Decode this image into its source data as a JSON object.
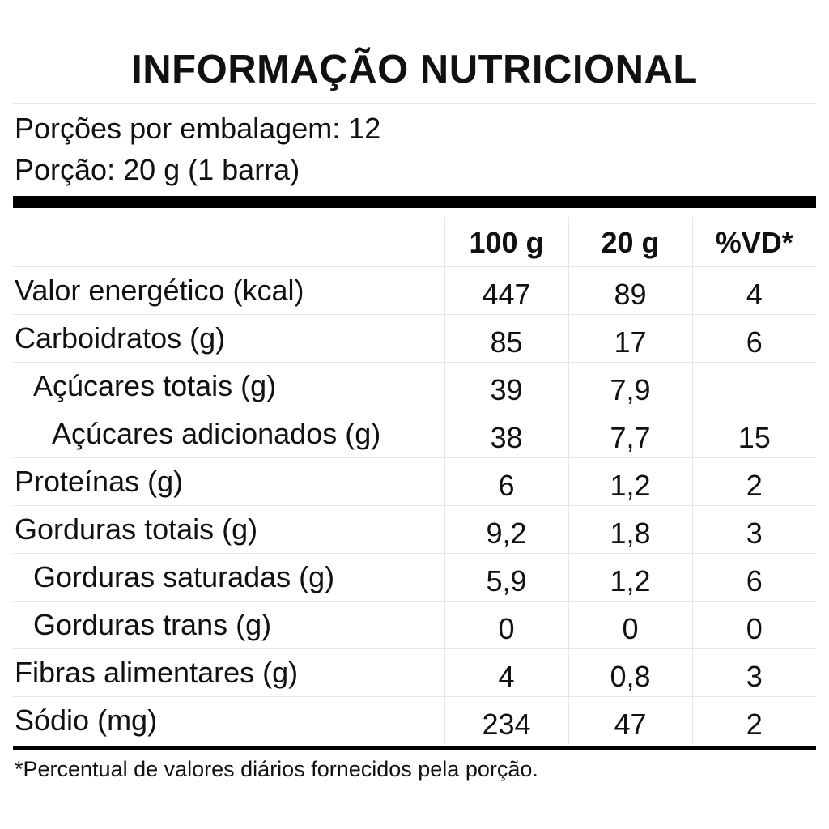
{
  "title": "INFORMAÇÃO NUTRICIONAL",
  "servings_per_package": "Porções por embalagem: 12",
  "serving_size": "Porção: 20 g (1 barra)",
  "table": {
    "headers": [
      "100 g",
      "20 g",
      "%VD*"
    ],
    "rows": [
      {
        "name": "Valor energético (kcal)",
        "level": 1,
        "per_100g": "447",
        "per_portion": "89",
        "dv": "4"
      },
      {
        "name": "Carboidratos (g)",
        "level": 1,
        "per_100g": "85",
        "per_portion": "17",
        "dv": "6"
      },
      {
        "name": "Açúcares totais (g)",
        "level": 2,
        "per_100g": "39",
        "per_portion": "7,9",
        "dv": ""
      },
      {
        "name": "Açúcares adicionados (g)",
        "level": 3,
        "per_100g": "38",
        "per_portion": "7,7",
        "dv": "15"
      },
      {
        "name": "Proteínas (g)",
        "level": 1,
        "per_100g": "6",
        "per_portion": "1,2",
        "dv": "2"
      },
      {
        "name": "Gorduras totais (g)",
        "level": 1,
        "per_100g": "9,2",
        "per_portion": "1,8",
        "dv": "3"
      },
      {
        "name": "Gorduras saturadas (g)",
        "level": 2,
        "per_100g": "5,9",
        "per_portion": "1,2",
        "dv": "6"
      },
      {
        "name": "Gorduras trans (g)",
        "level": 2,
        "per_100g": "0",
        "per_portion": "0",
        "dv": "0"
      },
      {
        "name": "Fibras alimentares (g)",
        "level": 1,
        "per_100g": "4",
        "per_portion": "0,8",
        "dv": "3"
      },
      {
        "name": "Sódio (mg)",
        "level": 1,
        "per_100g": "234",
        "per_portion": "47",
        "dv": "2"
      }
    ]
  },
  "footnote": "*Percentual de valores diários fornecidos pela porção.",
  "colors": {
    "text": "#111111",
    "rule_thick": "#000000",
    "rule_thin": "#e6e6e6",
    "background": "#ffffff"
  }
}
